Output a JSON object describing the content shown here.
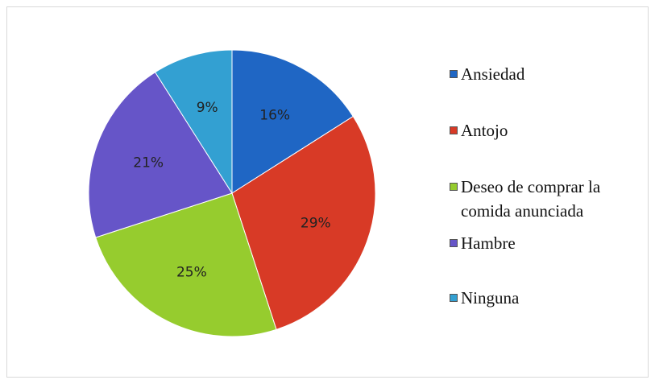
{
  "chart_data": {
    "type": "pie",
    "categories": [
      "Ansiedad",
      "Antojo",
      "Deseo de comprar la comida anunciada",
      "Hambre",
      "Ninguna"
    ],
    "values": [
      16,
      29,
      25,
      21,
      9
    ],
    "value_labels": [
      "16%",
      "29%",
      "25%",
      "21%",
      "9%"
    ],
    "colors": [
      "#1f66c4",
      "#d83a26",
      "#96cc2e",
      "#6655c8",
      "#33a0d2"
    ],
    "legend": "right"
  }
}
